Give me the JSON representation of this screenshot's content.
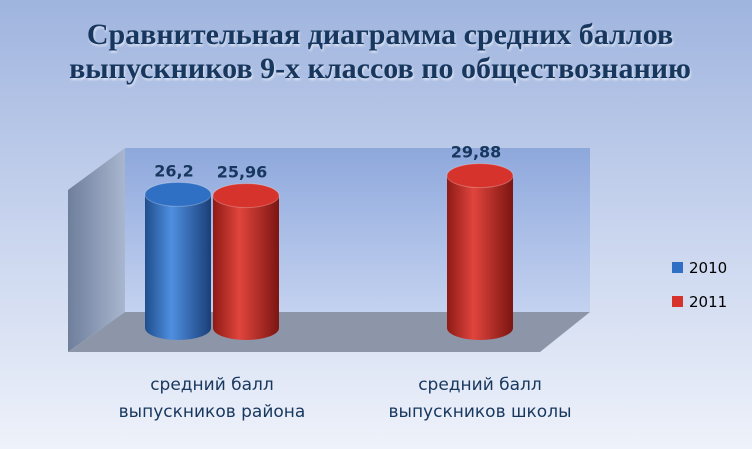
{
  "chart_data": {
    "type": "bar",
    "title": "Сравнительная диаграмма средних баллов выпускников 9-х классов по обществознанию",
    "categories": [
      "средний балл выпускников района",
      "средний балл выпускников школы"
    ],
    "series": [
      {
        "name": "2010",
        "color": "#2f6fc4",
        "values": [
          26.2,
          null
        ],
        "value_labels": [
          "26,2",
          null
        ]
      },
      {
        "name": "2011",
        "color": "#d6332c",
        "values": [
          25.96,
          29.88
        ],
        "value_labels": [
          "25,96",
          "29,88"
        ]
      }
    ]
  }
}
